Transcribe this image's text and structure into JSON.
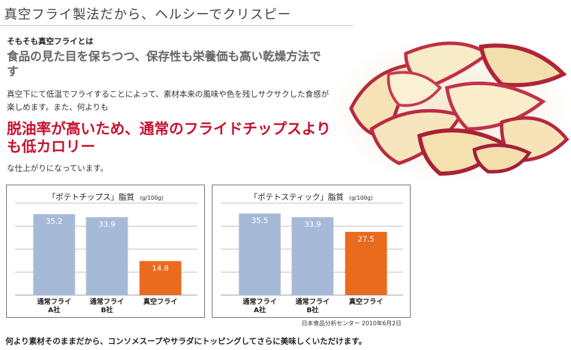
{
  "header": {
    "title": "真空フライ製法だから、ヘルシーでクリスピー"
  },
  "intro": {
    "kicker": "そもそも真空フライとは",
    "lead": "食品の見た目を保ちつつ、保存性も栄養価も高い乾燥方法です",
    "body": "真空下にて低温でフライすることによって、素材本来の風味や色を残しサクサクした食感が楽しめます。また、何よりも",
    "highlight": "脱油率が高いため、通常のフライドチップスよりも低カロリー",
    "body2": "な仕上がりになっています。"
  },
  "chart_data": [
    {
      "type": "bar",
      "title": "「ポテトチップス」脂質",
      "unit": "(g/100g)",
      "categories": [
        "通常フライ\nA社",
        "通常フライ\nB社",
        "真空フライ"
      ],
      "values": [
        35.2,
        33.9,
        14.8
      ],
      "value_labels": [
        "35.2",
        "33.9",
        "14.8"
      ],
      "colors": [
        "#a6bad8",
        "#a6bad8",
        "#ea6a1e"
      ],
      "ylim": [
        0,
        40
      ],
      "grid": true
    },
    {
      "type": "bar",
      "title": "「ポテトスティック」脂質",
      "unit": "(g/100g)",
      "categories": [
        "通常フライ\nA社",
        "通常フライ\nB社",
        "真空フライ"
      ],
      "values": [
        35.5,
        33.9,
        27.5
      ],
      "value_labels": [
        "35.5",
        "33.9",
        "27.5"
      ],
      "colors": [
        "#a6bad8",
        "#a6bad8",
        "#ea6a1e"
      ],
      "ylim": [
        0,
        40
      ],
      "grid": true
    }
  ],
  "source": "日本食品分析センター 2010年6月2日",
  "footer": "何より素材そのままだから、コンソメスープやサラダにトッピングしてさらに美味しくいただけます。"
}
